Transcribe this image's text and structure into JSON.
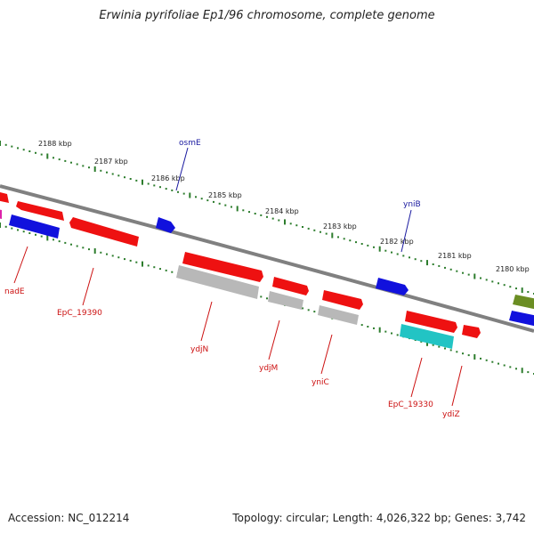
{
  "title": "Erwinia pyrifoliae Ep1/96 chromosome, complete genome",
  "footer": {
    "accession": "Accession: NC_012214",
    "summary": "Topology: circular; Length: 4,026,322 bp; Genes: 3,742"
  },
  "ruler_labels": [
    "2188 kbp",
    "2187 kbp",
    "2186 kbp",
    "2185 kbp",
    "2184 kbp",
    "2183 kbp",
    "2182 kbp",
    "2181 kbp",
    "2180 kbp"
  ],
  "genes_top": [
    "osmE",
    "yniB"
  ],
  "genes_bottom": [
    "nadE",
    "EpC_19390",
    "ydjN",
    "ydjM",
    "yniC",
    "EpC_19330",
    "ydiZ"
  ],
  "colors": {
    "backbone": "#808080",
    "tick": "#2d7d2d",
    "red": "#ee1111",
    "blue": "#1111dd",
    "grey": "#b8b8b8",
    "cyan": "#22c4c4",
    "olive": "#6b8e23",
    "magenta": "#dd22aa",
    "label_top": "#1a1aa0",
    "label_bottom": "#cc1111"
  }
}
